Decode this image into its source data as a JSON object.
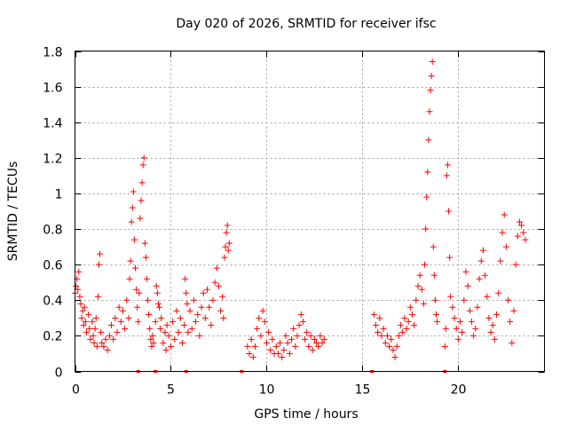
{
  "chart_data": {
    "type": "scatter",
    "title": "Day 020 of 2026, SRMTID for receiver ifsc",
    "xlabel": "GPS time / hours",
    "ylabel": "SRMTID / TECUs",
    "xlim": [
      0,
      24.5
    ],
    "ylim": [
      0,
      1.8
    ],
    "xticks": [
      0,
      5,
      10,
      15,
      20
    ],
    "yticks": [
      0,
      0.2,
      0.4,
      0.6,
      0.8,
      1,
      1.2,
      1.4,
      1.6,
      1.8
    ],
    "ytick_labels": [
      "0",
      "0.2",
      "0.4",
      "0.6",
      "0.8",
      "1",
      "1.2",
      "1.4",
      "1.6",
      "1.8"
    ],
    "grid": true,
    "marker": "+",
    "color": "#ff0000",
    "series": [
      {
        "name": "SRMTID",
        "points": [
          [
            0.0,
            0.44
          ],
          [
            0.05,
            0.48
          ],
          [
            0.1,
            0.52
          ],
          [
            0.15,
            0.46
          ],
          [
            0.2,
            0.56
          ],
          [
            0.25,
            0.42
          ],
          [
            0.3,
            0.38
          ],
          [
            0.35,
            0.3
          ],
          [
            0.4,
            0.34
          ],
          [
            0.45,
            0.26
          ],
          [
            0.5,
            0.36
          ],
          [
            0.55,
            0.28
          ],
          [
            0.6,
            0.22
          ],
          [
            0.7,
            0.32
          ],
          [
            0.75,
            0.24
          ],
          [
            0.8,
            0.18
          ],
          [
            0.9,
            0.28
          ],
          [
            0.95,
            0.2
          ],
          [
            1.0,
            0.16
          ],
          [
            1.05,
            0.24
          ],
          [
            1.1,
            0.3
          ],
          [
            1.15,
            0.14
          ],
          [
            1.2,
            0.42
          ],
          [
            1.25,
            0.6
          ],
          [
            1.3,
            0.66
          ],
          [
            1.35,
            0.22
          ],
          [
            1.4,
            0.16
          ],
          [
            1.5,
            0.14
          ],
          [
            1.6,
            0.18
          ],
          [
            1.7,
            0.12
          ],
          [
            1.8,
            0.2
          ],
          [
            1.9,
            0.26
          ],
          [
            2.0,
            0.18
          ],
          [
            2.1,
            0.3
          ],
          [
            2.2,
            0.22
          ],
          [
            2.3,
            0.36
          ],
          [
            2.4,
            0.28
          ],
          [
            2.5,
            0.34
          ],
          [
            2.6,
            0.24
          ],
          [
            2.7,
            0.4
          ],
          [
            2.8,
            0.3
          ],
          [
            2.85,
            0.52
          ],
          [
            2.9,
            0.62
          ],
          [
            2.95,
            0.84
          ],
          [
            3.0,
            0.92
          ],
          [
            3.05,
            1.01
          ],
          [
            3.1,
            0.74
          ],
          [
            3.15,
            0.58
          ],
          [
            3.2,
            0.46
          ],
          [
            3.25,
            0.36
          ],
          [
            3.3,
            0.28
          ],
          [
            3.35,
            0.44
          ],
          [
            3.4,
            0.86
          ],
          [
            3.45,
            0.96
          ],
          [
            3.5,
            1.06
          ],
          [
            3.55,
            1.16
          ],
          [
            3.6,
            1.2
          ],
          [
            3.65,
            0.72
          ],
          [
            3.7,
            0.64
          ],
          [
            3.75,
            0.52
          ],
          [
            3.8,
            0.4
          ],
          [
            3.85,
            0.32
          ],
          [
            3.9,
            0.24
          ],
          [
            3.95,
            0.18
          ],
          [
            4.0,
            0.14
          ],
          [
            4.05,
            0.2
          ],
          [
            4.1,
            0.16
          ],
          [
            4.2,
            0.28
          ],
          [
            4.25,
            0.48
          ],
          [
            4.3,
            0.44
          ],
          [
            4.35,
            0.38
          ],
          [
            4.4,
            0.36
          ],
          [
            4.45,
            0.24
          ],
          [
            4.5,
            0.3
          ],
          [
            4.6,
            0.16
          ],
          [
            4.7,
            0.22
          ],
          [
            4.75,
            0.12
          ],
          [
            4.8,
            0.26
          ],
          [
            4.9,
            0.2
          ],
          [
            5.0,
            0.14
          ],
          [
            5.1,
            0.28
          ],
          [
            5.2,
            0.18
          ],
          [
            5.3,
            0.34
          ],
          [
            5.4,
            0.22
          ],
          [
            5.5,
            0.3
          ],
          [
            5.6,
            0.16
          ],
          [
            5.7,
            0.26
          ],
          [
            5.75,
            0.52
          ],
          [
            5.8,
            0.44
          ],
          [
            5.85,
            0.38
          ],
          [
            5.9,
            0.22
          ],
          [
            6.0,
            0.34
          ],
          [
            6.1,
            0.24
          ],
          [
            6.2,
            0.4
          ],
          [
            6.3,
            0.28
          ],
          [
            6.4,
            0.32
          ],
          [
            6.5,
            0.2
          ],
          [
            6.6,
            0.36
          ],
          [
            6.7,
            0.44
          ],
          [
            6.8,
            0.3
          ],
          [
            6.9,
            0.46
          ],
          [
            7.0,
            0.36
          ],
          [
            7.1,
            0.26
          ],
          [
            7.2,
            0.4
          ],
          [
            7.3,
            0.5
          ],
          [
            7.4,
            0.58
          ],
          [
            7.5,
            0.48
          ],
          [
            7.6,
            0.34
          ],
          [
            7.7,
            0.42
          ],
          [
            7.75,
            0.3
          ],
          [
            7.8,
            0.64
          ],
          [
            7.85,
            0.7
          ],
          [
            7.9,
            0.78
          ],
          [
            7.95,
            0.82
          ],
          [
            8.0,
            0.68
          ],
          [
            8.05,
            0.72
          ],
          [
            9.0,
            0.14
          ],
          [
            9.1,
            0.1
          ],
          [
            9.2,
            0.18
          ],
          [
            9.3,
            0.08
          ],
          [
            9.4,
            0.14
          ],
          [
            9.5,
            0.24
          ],
          [
            9.6,
            0.3
          ],
          [
            9.7,
            0.2
          ],
          [
            9.8,
            0.34
          ],
          [
            9.9,
            0.28
          ],
          [
            10.0,
            0.16
          ],
          [
            10.1,
            0.22
          ],
          [
            10.2,
            0.12
          ],
          [
            10.3,
            0.18
          ],
          [
            10.4,
            0.1
          ],
          [
            10.5,
            0.14
          ],
          [
            10.6,
            0.1
          ],
          [
            10.7,
            0.16
          ],
          [
            10.8,
            0.08
          ],
          [
            10.9,
            0.12
          ],
          [
            11.0,
            0.2
          ],
          [
            11.1,
            0.16
          ],
          [
            11.2,
            0.1
          ],
          [
            11.3,
            0.18
          ],
          [
            11.4,
            0.24
          ],
          [
            11.5,
            0.14
          ],
          [
            11.6,
            0.2
          ],
          [
            11.7,
            0.26
          ],
          [
            11.8,
            0.32
          ],
          [
            11.9,
            0.28
          ],
          [
            12.0,
            0.18
          ],
          [
            12.1,
            0.22
          ],
          [
            12.2,
            0.14
          ],
          [
            12.3,
            0.2
          ],
          [
            12.4,
            0.12
          ],
          [
            12.5,
            0.18
          ],
          [
            12.6,
            0.16
          ],
          [
            12.7,
            0.14
          ],
          [
            12.8,
            0.2
          ],
          [
            12.9,
            0.16
          ],
          [
            13.0,
            0.18
          ],
          [
            15.6,
            0.32
          ],
          [
            15.7,
            0.26
          ],
          [
            15.8,
            0.22
          ],
          [
            15.9,
            0.3
          ],
          [
            16.0,
            0.2
          ],
          [
            16.1,
            0.24
          ],
          [
            16.2,
            0.16
          ],
          [
            16.3,
            0.2
          ],
          [
            16.4,
            0.14
          ],
          [
            16.5,
            0.18
          ],
          [
            16.6,
            0.12
          ],
          [
            16.7,
            0.08
          ],
          [
            16.8,
            0.14
          ],
          [
            16.9,
            0.2
          ],
          [
            17.0,
            0.26
          ],
          [
            17.1,
            0.22
          ],
          [
            17.2,
            0.3
          ],
          [
            17.3,
            0.24
          ],
          [
            17.4,
            0.28
          ],
          [
            17.5,
            0.36
          ],
          [
            17.6,
            0.32
          ],
          [
            17.7,
            0.26
          ],
          [
            17.8,
            0.4
          ],
          [
            17.9,
            0.48
          ],
          [
            18.0,
            0.54
          ],
          [
            18.1,
            0.46
          ],
          [
            18.2,
            0.38
          ],
          [
            18.25,
            0.6
          ],
          [
            18.3,
            0.8
          ],
          [
            18.35,
            0.98
          ],
          [
            18.4,
            1.12
          ],
          [
            18.45,
            1.3
          ],
          [
            18.5,
            1.46
          ],
          [
            18.55,
            1.58
          ],
          [
            18.6,
            1.66
          ],
          [
            18.65,
            1.74
          ],
          [
            18.7,
            0.7
          ],
          [
            18.75,
            0.54
          ],
          [
            18.8,
            0.4
          ],
          [
            18.85,
            0.32
          ],
          [
            18.9,
            0.28
          ],
          [
            19.3,
            0.14
          ],
          [
            19.35,
            0.24
          ],
          [
            19.4,
            1.1
          ],
          [
            19.45,
            1.16
          ],
          [
            19.5,
            0.9
          ],
          [
            19.55,
            0.64
          ],
          [
            19.6,
            0.42
          ],
          [
            19.7,
            0.36
          ],
          [
            19.8,
            0.3
          ],
          [
            19.9,
            0.24
          ],
          [
            20.0,
            0.18
          ],
          [
            20.1,
            0.28
          ],
          [
            20.2,
            0.22
          ],
          [
            20.3,
            0.4
          ],
          [
            20.4,
            0.56
          ],
          [
            20.5,
            0.48
          ],
          [
            20.6,
            0.34
          ],
          [
            20.7,
            0.28
          ],
          [
            20.8,
            0.2
          ],
          [
            20.9,
            0.24
          ],
          [
            21.0,
            0.36
          ],
          [
            21.1,
            0.52
          ],
          [
            21.2,
            0.62
          ],
          [
            21.3,
            0.68
          ],
          [
            21.4,
            0.54
          ],
          [
            21.5,
            0.42
          ],
          [
            21.6,
            0.3
          ],
          [
            21.7,
            0.22
          ],
          [
            21.8,
            0.26
          ],
          [
            21.9,
            0.18
          ],
          [
            22.0,
            0.32
          ],
          [
            22.1,
            0.44
          ],
          [
            22.2,
            0.62
          ],
          [
            22.3,
            0.78
          ],
          [
            22.4,
            0.88
          ],
          [
            22.5,
            0.7
          ],
          [
            22.6,
            0.4
          ],
          [
            22.7,
            0.28
          ],
          [
            22.8,
            0.16
          ],
          [
            22.9,
            0.34
          ],
          [
            23.0,
            0.6
          ],
          [
            23.1,
            0.76
          ],
          [
            23.2,
            0.84
          ],
          [
            23.3,
            0.82
          ],
          [
            23.4,
            0.78
          ],
          [
            23.5,
            0.74
          ]
        ]
      }
    ],
    "gap_markers": [
      3.3,
      4.2,
      5.8,
      8.7,
      15.5,
      19.3
    ]
  }
}
